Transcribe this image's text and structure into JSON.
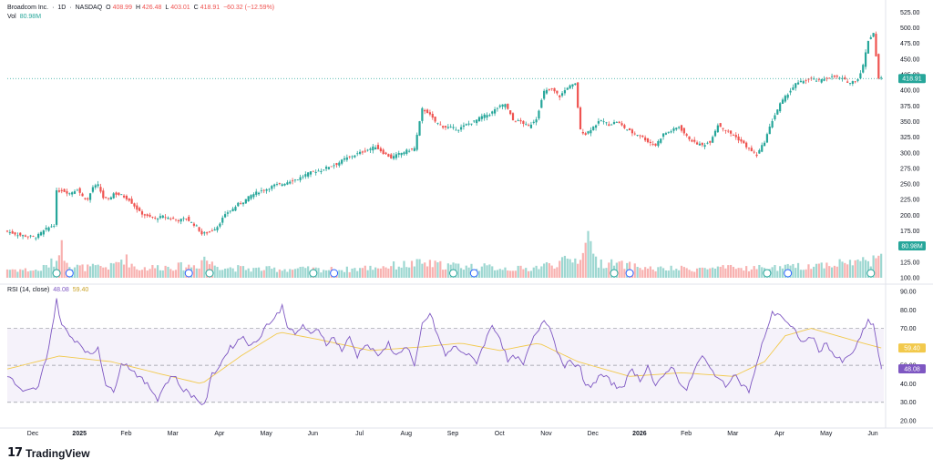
{
  "legend": {
    "name": "Broadcom Inc.",
    "interval": "1D",
    "exchange": "NASDAQ",
    "o_label": "O",
    "o_value": "408.99",
    "h_label": "H",
    "h_value": "426.48",
    "l_label": "L",
    "l_value": "403.01",
    "c_label": "C",
    "c_value": "418.91",
    "change": "−60.32 (−12.59%)",
    "vol_label": "Vol",
    "vol_value": "80.98M",
    "rsi_label": "RSI (14, close)",
    "rsi_value": "48.08",
    "rsi_ma_value": "59.40"
  },
  "brand": {
    "logo": "17",
    "text": "TradingView"
  },
  "colors": {
    "up": "#26a69a",
    "down": "#ef5350",
    "rsi": "#7e57c2",
    "rsi_ma": "#f2c94c",
    "rsi_band": "#ede7f6",
    "price_line": "#26a69a",
    "event": "#2962ff"
  },
  "chart_data": {
    "type": "candlestick",
    "symbol": "Broadcom Inc. · 1D · NASDAQ",
    "price_axis": {
      "ticks": [
        "525.00",
        "500.00",
        "475.00",
        "450.00",
        "425.00",
        "400.00",
        "375.00",
        "350.00",
        "325.00",
        "300.00",
        "275.00",
        "250.00",
        "225.00",
        "200.00",
        "175.00",
        "150.00",
        "125.00",
        "100.00"
      ],
      "range": [
        100,
        530
      ]
    },
    "x_axis": {
      "labels": [
        "Dec",
        "2025",
        "Feb",
        "Mar",
        "Apr",
        "May",
        "Jun",
        "Jul",
        "Aug",
        "Sep",
        "Oct",
        "Nov",
        "Dec",
        "2026",
        "Feb",
        "Mar",
        "Apr",
        "May",
        "Jun"
      ],
      "bold_labels": [
        "2025",
        "2026"
      ]
    },
    "last_price": {
      "value": 418.91,
      "label": "418.91"
    },
    "volume_tag": "80.98M",
    "price_series_approx": [
      [
        0,
        175
      ],
      [
        6,
        168
      ],
      [
        12,
        165
      ],
      [
        16,
        178
      ],
      [
        19,
        185
      ],
      [
        20,
        238
      ],
      [
        22,
        240
      ],
      [
        25,
        235
      ],
      [
        28,
        242
      ],
      [
        30,
        230
      ],
      [
        32,
        225
      ],
      [
        34,
        245
      ],
      [
        36,
        248
      ],
      [
        38,
        228
      ],
      [
        40,
        225
      ],
      [
        42,
        235
      ],
      [
        45,
        232
      ],
      [
        48,
        225
      ],
      [
        50,
        215
      ],
      [
        52,
        205
      ],
      [
        55,
        198
      ],
      [
        58,
        195
      ],
      [
        61,
        198
      ],
      [
        64,
        195
      ],
      [
        67,
        192
      ],
      [
        70,
        195
      ],
      [
        72,
        188
      ],
      [
        74,
        182
      ],
      [
        76,
        170
      ],
      [
        78,
        172
      ],
      [
        80,
        176
      ],
      [
        82,
        182
      ],
      [
        84,
        195
      ],
      [
        86,
        205
      ],
      [
        88,
        210
      ],
      [
        90,
        218
      ],
      [
        92,
        222
      ],
      [
        95,
        232
      ],
      [
        98,
        238
      ],
      [
        101,
        242
      ],
      [
        104,
        248
      ],
      [
        107,
        250
      ],
      [
        110,
        255
      ],
      [
        113,
        258
      ],
      [
        116,
        265
      ],
      [
        119,
        270
      ],
      [
        122,
        272
      ],
      [
        125,
        278
      ],
      [
        128,
        282
      ],
      [
        131,
        290
      ],
      [
        134,
        295
      ],
      [
        137,
        300
      ],
      [
        140,
        305
      ],
      [
        143,
        310
      ],
      [
        146,
        300
      ],
      [
        149,
        292
      ],
      [
        152,
        298
      ],
      [
        155,
        303
      ],
      [
        158,
        307
      ],
      [
        161,
        370
      ],
      [
        163,
        365
      ],
      [
        166,
        350
      ],
      [
        169,
        342
      ],
      [
        172,
        340
      ],
      [
        175,
        338
      ],
      [
        178,
        345
      ],
      [
        181,
        350
      ],
      [
        184,
        358
      ],
      [
        187,
        362
      ],
      [
        190,
        372
      ],
      [
        193,
        378
      ],
      [
        196,
        352
      ],
      [
        199,
        350
      ],
      [
        202,
        342
      ],
      [
        205,
        355
      ],
      [
        208,
        398
      ],
      [
        211,
        402
      ],
      [
        214,
        390
      ],
      [
        217,
        405
      ],
      [
        220,
        410
      ],
      [
        222,
        336
      ],
      [
        224,
        330
      ],
      [
        227,
        342
      ],
      [
        230,
        352
      ],
      [
        233,
        345
      ],
      [
        236,
        350
      ],
      [
        239,
        340
      ],
      [
        242,
        332
      ],
      [
        245,
        328
      ],
      [
        248,
        318
      ],
      [
        251,
        312
      ],
      [
        254,
        330
      ],
      [
        257,
        335
      ],
      [
        260,
        342
      ],
      [
        263,
        326
      ],
      [
        266,
        316
      ],
      [
        269,
        312
      ],
      [
        272,
        318
      ],
      [
        275,
        345
      ],
      [
        278,
        336
      ],
      [
        281,
        328
      ],
      [
        284,
        318
      ],
      [
        287,
        306
      ],
      [
        290,
        296
      ],
      [
        293,
        318
      ],
      [
        296,
        352
      ],
      [
        299,
        378
      ],
      [
        302,
        395
      ],
      [
        305,
        410
      ],
      [
        308,
        415
      ],
      [
        311,
        418
      ],
      [
        314,
        415
      ],
      [
        317,
        420
      ],
      [
        320,
        422
      ],
      [
        323,
        418
      ],
      [
        326,
        412
      ],
      [
        329,
        418
      ],
      [
        331,
        440
      ],
      [
        333,
        480
      ],
      [
        335,
        492
      ],
      [
        337,
        419
      ]
    ],
    "volume_bars_approx_millions": [
      [
        0,
        30
      ],
      [
        6,
        28
      ],
      [
        12,
        25
      ],
      [
        16,
        45
      ],
      [
        19,
        60
      ],
      [
        20,
        120
      ],
      [
        22,
        85
      ],
      [
        25,
        40
      ],
      [
        30,
        35
      ],
      [
        40,
        38
      ],
      [
        45,
        70
      ],
      [
        50,
        32
      ],
      [
        60,
        38
      ],
      [
        70,
        40
      ],
      [
        74,
        45
      ],
      [
        76,
        75
      ],
      [
        78,
        50
      ],
      [
        85,
        35
      ],
      [
        95,
        30
      ],
      [
        110,
        30
      ],
      [
        130,
        28
      ],
      [
        160,
        50
      ],
      [
        165,
        45
      ],
      [
        200,
        30
      ],
      [
        220,
        65
      ],
      [
        223,
        110
      ],
      [
        225,
        170
      ],
      [
        227,
        55
      ],
      [
        250,
        30
      ],
      [
        300,
        35
      ],
      [
        333,
        60
      ],
      [
        335,
        95
      ],
      [
        337,
        81
      ]
    ],
    "volume_events": [
      {
        "idx": 19,
        "kind": "E"
      },
      {
        "idx": 24,
        "kind": "D"
      },
      {
        "idx": 70,
        "kind": "D"
      },
      {
        "idx": 78,
        "kind": "E"
      },
      {
        "idx": 118,
        "kind": "E"
      },
      {
        "idx": 126,
        "kind": "D"
      },
      {
        "idx": 172,
        "kind": "E"
      },
      {
        "idx": 180,
        "kind": "D"
      },
      {
        "idx": 234,
        "kind": "E"
      },
      {
        "idx": 240,
        "kind": "D"
      },
      {
        "idx": 293,
        "kind": "E"
      },
      {
        "idx": 301,
        "kind": "D"
      },
      {
        "idx": 333,
        "kind": "E"
      }
    ],
    "rsi_axis": {
      "ticks": [
        "90.00",
        "80.00",
        "70.00",
        "60.00",
        "50.00",
        "40.00",
        "30.00",
        "20.00"
      ],
      "range": [
        20,
        90
      ]
    },
    "rsi_bands": {
      "upper": 70,
      "lower": 30
    },
    "rsi_last": {
      "value": 48.08,
      "label": "48.08"
    },
    "rsi_ma_last": {
      "value": 59.4,
      "label": "59.40"
    },
    "rsi_series_approx": [
      [
        0,
        45
      ],
      [
        6,
        35
      ],
      [
        12,
        38
      ],
      [
        16,
        60
      ],
      [
        19,
        85
      ],
      [
        21,
        72
      ],
      [
        24,
        66
      ],
      [
        28,
        62
      ],
      [
        32,
        55
      ],
      [
        35,
        60
      ],
      [
        38,
        40
      ],
      [
        41,
        35
      ],
      [
        44,
        52
      ],
      [
        48,
        48
      ],
      [
        52,
        42
      ],
      [
        55,
        38
      ],
      [
        58,
        32
      ],
      [
        61,
        40
      ],
      [
        64,
        45
      ],
      [
        67,
        38
      ],
      [
        70,
        35
      ],
      [
        73,
        32
      ],
      [
        76,
        28
      ],
      [
        79,
        45
      ],
      [
        82,
        50
      ],
      [
        85,
        58
      ],
      [
        88,
        62
      ],
      [
        91,
        66
      ],
      [
        94,
        60
      ],
      [
        97,
        65
      ],
      [
        100,
        72
      ],
      [
        103,
        75
      ],
      [
        106,
        82
      ],
      [
        108,
        72
      ],
      [
        111,
        66
      ],
      [
        114,
        72
      ],
      [
        117,
        66
      ],
      [
        120,
        70
      ],
      [
        123,
        62
      ],
      [
        126,
        65
      ],
      [
        129,
        58
      ],
      [
        132,
        65
      ],
      [
        135,
        55
      ],
      [
        138,
        62
      ],
      [
        141,
        58
      ],
      [
        144,
        55
      ],
      [
        147,
        62
      ],
      [
        150,
        55
      ],
      [
        153,
        60
      ],
      [
        155,
        58
      ],
      [
        157,
        48
      ],
      [
        160,
        72
      ],
      [
        163,
        78
      ],
      [
        166,
        66
      ],
      [
        169,
        55
      ],
      [
        172,
        60
      ],
      [
        175,
        58
      ],
      [
        178,
        55
      ],
      [
        181,
        52
      ],
      [
        184,
        62
      ],
      [
        187,
        72
      ],
      [
        190,
        65
      ],
      [
        193,
        52
      ],
      [
        196,
        55
      ],
      [
        199,
        50
      ],
      [
        202,
        62
      ],
      [
        205,
        70
      ],
      [
        207,
        75
      ],
      [
        209,
        72
      ],
      [
        212,
        58
      ],
      [
        215,
        50
      ],
      [
        218,
        52
      ],
      [
        221,
        48
      ],
      [
        223,
        38
      ],
      [
        226,
        40
      ],
      [
        229,
        45
      ],
      [
        232,
        42
      ],
      [
        235,
        38
      ],
      [
        238,
        40
      ],
      [
        241,
        48
      ],
      [
        244,
        42
      ],
      [
        247,
        50
      ],
      [
        250,
        38
      ],
      [
        253,
        44
      ],
      [
        256,
        50
      ],
      [
        259,
        42
      ],
      [
        262,
        36
      ],
      [
        265,
        48
      ],
      [
        268,
        55
      ],
      [
        271,
        48
      ],
      [
        274,
        44
      ],
      [
        277,
        38
      ],
      [
        280,
        46
      ],
      [
        283,
        40
      ],
      [
        286,
        36
      ],
      [
        289,
        50
      ],
      [
        292,
        66
      ],
      [
        295,
        78
      ],
      [
        298,
        78
      ],
      [
        301,
        72
      ],
      [
        304,
        68
      ],
      [
        307,
        62
      ],
      [
        310,
        66
      ],
      [
        313,
        58
      ],
      [
        316,
        62
      ],
      [
        319,
        55
      ],
      [
        322,
        52
      ],
      [
        325,
        55
      ],
      [
        328,
        62
      ],
      [
        330,
        68
      ],
      [
        332,
        74
      ],
      [
        334,
        72
      ],
      [
        337,
        48
      ]
    ],
    "rsi_ma_series_approx": [
      [
        0,
        48
      ],
      [
        20,
        55
      ],
      [
        40,
        52
      ],
      [
        60,
        45
      ],
      [
        75,
        40
      ],
      [
        90,
        55
      ],
      [
        105,
        68
      ],
      [
        120,
        64
      ],
      [
        140,
        58
      ],
      [
        160,
        60
      ],
      [
        175,
        62
      ],
      [
        190,
        58
      ],
      [
        205,
        62
      ],
      [
        220,
        52
      ],
      [
        240,
        44
      ],
      [
        260,
        46
      ],
      [
        280,
        44
      ],
      [
        292,
        52
      ],
      [
        300,
        66
      ],
      [
        310,
        70
      ],
      [
        320,
        66
      ],
      [
        330,
        62
      ],
      [
        337,
        59.4
      ]
    ]
  }
}
